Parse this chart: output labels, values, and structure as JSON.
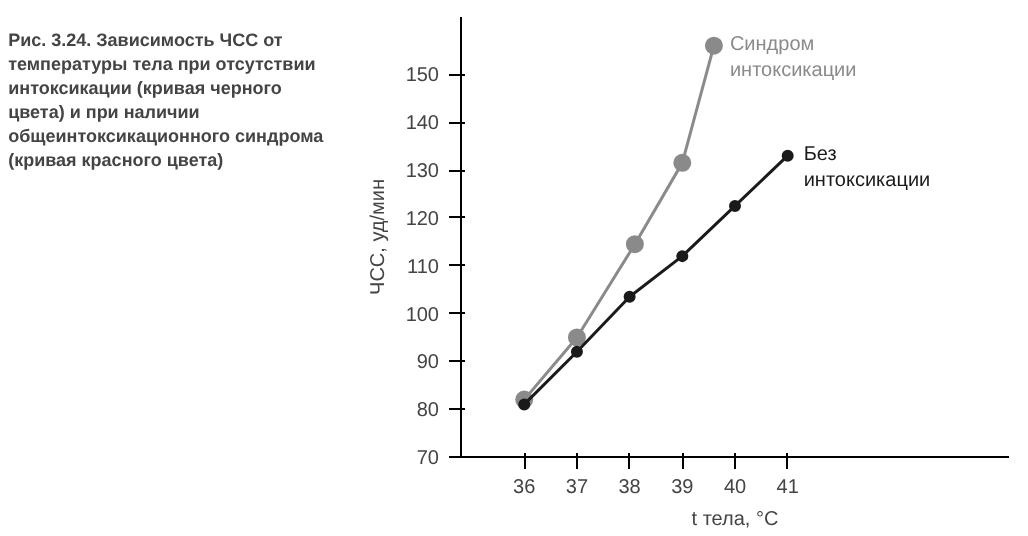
{
  "chart_data": {
    "type": "line",
    "title": "Рис. 3.24. Зависимость ЧСС от температуры тела при отсутствии интоксикации (кривая черного цвета) и при наличии общеинтоксикационного синдрома (кривая красного цвета)",
    "xlabel": "t тела, °C",
    "ylabel": "ЧСС, уд/мин",
    "series": [
      {
        "name": "Синдром интоксикации",
        "color": "#8a8a8a",
        "x": [
          36,
          37,
          38.1,
          39,
          39.6
        ],
        "values": [
          82,
          95,
          114.5,
          131.5,
          156
        ]
      },
      {
        "name": "Без интоксикации",
        "color": "#1a1a1a",
        "x": [
          36,
          37,
          38,
          39,
          40,
          41
        ],
        "values": [
          81,
          92,
          103.5,
          112,
          122.5,
          133
        ]
      }
    ],
    "xlim": [
      34.8,
      45.2
    ],
    "ylim": [
      70,
      162
    ],
    "xticks": [
      36,
      37,
      38,
      39,
      40,
      41
    ],
    "yticks": [
      70,
      80,
      90,
      100,
      110,
      120,
      130,
      140,
      150
    ],
    "grid": false,
    "marker": "circle",
    "line_style": "solid"
  }
}
